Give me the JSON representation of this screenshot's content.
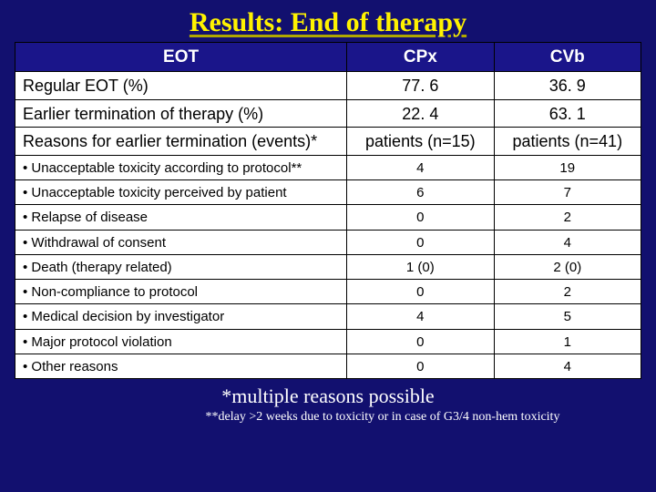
{
  "title": "Results: End of therapy",
  "background_color": "#12106f",
  "title_color": "#fff200",
  "header_bg": "#1a158a",
  "header_fg": "#ffffff",
  "cell_bg": "#ffffff",
  "border_color": "#000000",
  "columns": [
    "EOT",
    "CPx",
    "CVb"
  ],
  "rows_top": [
    {
      "label": "Regular EOT (%)",
      "cpx": "77. 6",
      "cvb": "36. 9"
    },
    {
      "label": "Earlier termination of therapy (%)",
      "cpx": "22. 4",
      "cvb": "63. 1"
    }
  ],
  "subheader": {
    "label": "Reasons for earlier termination (events)*",
    "cpx": "patients (n=15)",
    "cvb": "patients (n=41)"
  },
  "rows_reasons": [
    {
      "label": "• Unacceptable toxicity according to protocol**",
      "cpx": "4",
      "cvb": "19"
    },
    {
      "label": "• Unacceptable toxicity perceived by patient",
      "cpx": "6",
      "cvb": "7"
    },
    {
      "label": "• Relapse of disease",
      "cpx": "0",
      "cvb": "2"
    },
    {
      "label": "• Withdrawal of consent",
      "cpx": "0",
      "cvb": "4"
    },
    {
      "label": "• Death (therapy related)",
      "cpx": "1 (0)",
      "cvb": "2 (0)"
    },
    {
      "label": "• Non-compliance to protocol",
      "cpx": "0",
      "cvb": "2"
    },
    {
      "label": "• Medical decision by investigator",
      "cpx": "4",
      "cvb": "5"
    },
    {
      "label": "• Major protocol violation",
      "cpx": "0",
      "cvb": "1"
    },
    {
      "label": "• Other reasons",
      "cpx": "0",
      "cvb": "4"
    }
  ],
  "footnote1": "*multiple reasons possible",
  "footnote2": "**delay >2 weeks due to toxicity or in case of G3/4 non-hem toxicity",
  "fonts": {
    "title_pt": 30,
    "header_pt": 19,
    "big_row_pt": 18,
    "small_row_pt": 15,
    "fn1_pt": 22,
    "fn2_pt": 14
  },
  "col_widths_pct": [
    53,
    23.5,
    23.5
  ]
}
